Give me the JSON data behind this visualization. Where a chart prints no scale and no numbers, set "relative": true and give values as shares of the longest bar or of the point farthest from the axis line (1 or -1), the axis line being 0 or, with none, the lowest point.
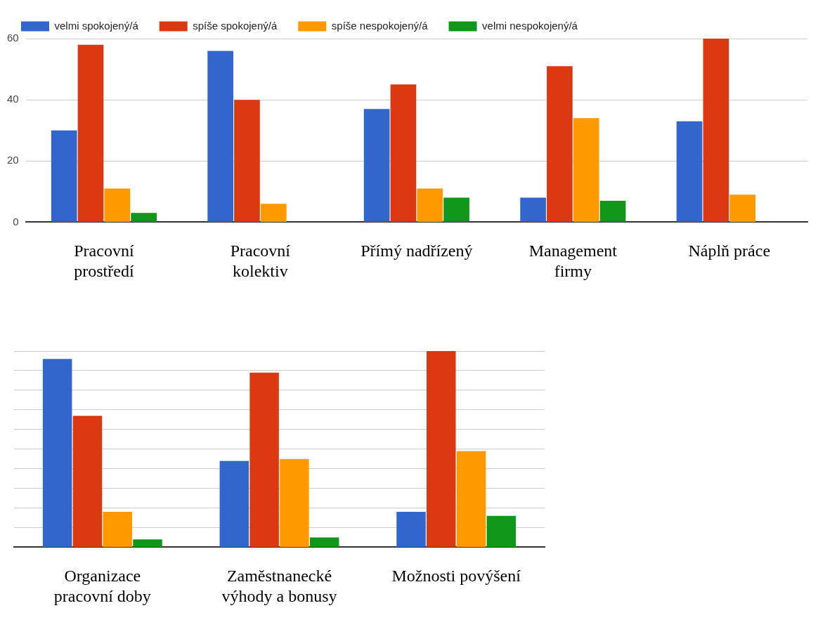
{
  "chart_data": [
    {
      "type": "bar",
      "categories": [
        "Pracovní prostředí",
        "Pracovní kolektiv",
        "Přímý nadřízený",
        "Management firmy",
        "Náplň práce"
      ],
      "series": [
        {
          "name": "velmi spokojený/á",
          "color": "#3366cc",
          "values": [
            30,
            56,
            37,
            8,
            33
          ]
        },
        {
          "name": "spíše spokojený/á",
          "color": "#dc3912",
          "values": [
            58,
            40,
            45,
            51,
            60
          ]
        },
        {
          "name": "spíše nespokojený/á",
          "color": "#ff9900",
          "values": [
            11,
            6,
            11,
            34,
            9
          ]
        },
        {
          "name": "velmi nespokojený/á",
          "color": "#109618",
          "values": [
            3,
            null,
            8,
            7,
            null
          ]
        }
      ],
      "ylim": [
        0,
        60
      ],
      "yticks": [
        0,
        20,
        40,
        60
      ],
      "grid": "y",
      "legend": "top"
    },
    {
      "type": "bar",
      "categories": [
        "Organizace pracovní doby",
        "Zaměstnanecké výhody a bonusy",
        "Možnosti povýšení"
      ],
      "series": [
        {
          "color": "#3366cc",
          "values": [
            0.96,
            0.44,
            0.18
          ]
        },
        {
          "color": "#dc3912",
          "values": [
            0.67,
            0.89,
            1
          ]
        },
        {
          "color": "#ff9900",
          "values": [
            0.18,
            0.45,
            0.49
          ]
        },
        {
          "color": "#109618",
          "values": [
            0.04,
            0.05,
            0.16
          ]
        }
      ],
      "relative": true,
      "grid": "y"
    }
  ]
}
